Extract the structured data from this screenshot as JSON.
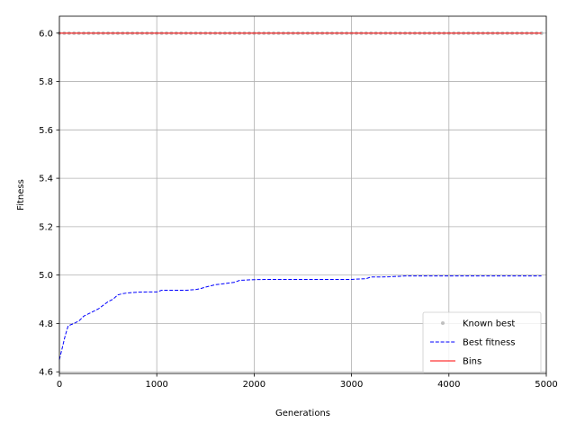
{
  "chart_data": {
    "type": "line",
    "title": "",
    "xlabel": "Generations",
    "ylabel": "Fitness",
    "xlim": [
      0,
      5000
    ],
    "ylim": [
      4.593,
      6.07
    ],
    "xticks": [
      "0",
      "1000",
      "2000",
      "3000",
      "4000",
      "5000"
    ],
    "yticks": [
      "4.6",
      "4.8",
      "5.0",
      "5.2",
      "5.4",
      "5.6",
      "5.8",
      "6.0"
    ],
    "grid": true,
    "legend_position": "lower-right",
    "series": [
      {
        "name": "Known best",
        "style": "dots",
        "color": "#999999",
        "x": [
          0,
          50,
          100,
          150,
          200,
          250,
          300,
          350,
          400,
          450,
          500,
          550,
          600,
          650,
          700,
          750,
          800,
          850,
          900,
          950,
          1000,
          1050,
          1100,
          1150,
          1200,
          1250,
          1300,
          1350,
          1400,
          1450,
          1500,
          1550,
          1600,
          1650,
          1700,
          1750,
          1800,
          1850,
          1900,
          1950,
          2000,
          2050,
          2100,
          2150,
          2200,
          2250,
          2300,
          2350,
          2400,
          2450,
          2500,
          2550,
          2600,
          2650,
          2700,
          2750,
          2800,
          2850,
          2900,
          2950,
          3000,
          3050,
          3100,
          3150,
          3200,
          3250,
          3300,
          3350,
          3400,
          3450,
          3500,
          3550,
          3600,
          3650,
          3700,
          3750,
          3800,
          3850,
          3900,
          3950,
          4000,
          4050,
          4100,
          4150,
          4200,
          4250,
          4300,
          4350,
          4400,
          4450,
          4500,
          4550,
          4600,
          4650,
          4700,
          4750,
          4800,
          4850,
          4900,
          4950
        ],
        "y_constant": 6.0
      },
      {
        "name": "Best fitness",
        "style": "dashed",
        "color": "#0000ff",
        "x": [
          0,
          30,
          60,
          90,
          150,
          200,
          250,
          300,
          350,
          400,
          450,
          500,
          550,
          600,
          650,
          700,
          800,
          900,
          1000,
          1050,
          1100,
          1200,
          1300,
          1400,
          1450,
          1500,
          1550,
          1600,
          1650,
          1700,
          1800,
          1850,
          1900,
          2000,
          2200,
          2500,
          2800,
          3000,
          3100,
          3150,
          3200,
          3300,
          3400,
          3500,
          3550,
          3800,
          4200,
          4600,
          4950
        ],
        "y": [
          4.65,
          4.7,
          4.75,
          4.79,
          4.8,
          4.81,
          4.83,
          4.84,
          4.85,
          4.86,
          4.875,
          4.89,
          4.9,
          4.918,
          4.923,
          4.926,
          4.929,
          4.93,
          4.93,
          4.937,
          4.937,
          4.937,
          4.937,
          4.94,
          4.944,
          4.95,
          4.955,
          4.96,
          4.962,
          4.965,
          4.97,
          4.978,
          4.979,
          4.981,
          4.982,
          4.982,
          4.982,
          4.982,
          4.984,
          4.985,
          4.992,
          4.992,
          4.993,
          4.995,
          4.996,
          4.996,
          4.996,
          4.996,
          4.996
        ]
      },
      {
        "name": "Bins",
        "style": "solid",
        "color": "#ff0000",
        "x": [
          0,
          4950
        ],
        "y": [
          6.0,
          6.0
        ]
      }
    ]
  }
}
